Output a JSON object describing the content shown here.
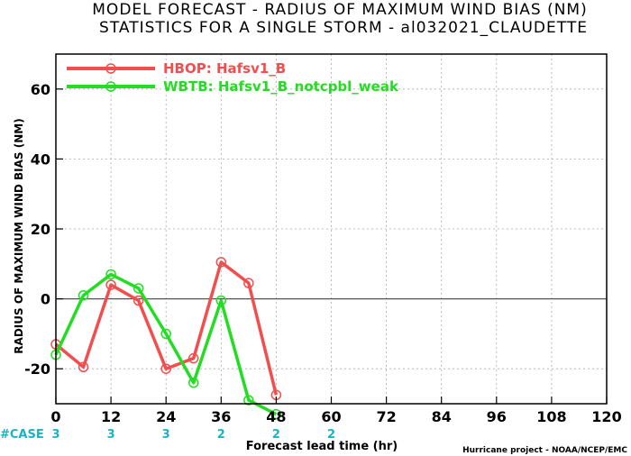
{
  "chart_data": {
    "type": "line",
    "title_line1": "MODEL FORECAST - RADIUS OF MAXIMUM WIND BIAS (NM)",
    "title_line2": "STATISTICS FOR A SINGLE STORM - al032021_CLAUDETTE",
    "xlabel": "Forecast lead time (hr)",
    "ylabel": "RADIUS OF MAXIMUM WIND BIAS (NM)",
    "xlim": [
      0,
      120
    ],
    "ylim": [
      -30,
      70
    ],
    "xticks": [
      0,
      12,
      24,
      36,
      48,
      60,
      72,
      84,
      96,
      108,
      120
    ],
    "yticks": [
      -20,
      0,
      20,
      40,
      60
    ],
    "grid": true,
    "legend_position": "top-left",
    "series": [
      {
        "name": "HBOP: Hafsv1_B",
        "color": "#f24e4e",
        "x": [
          0,
          6,
          12,
          18,
          24,
          30,
          36,
          42,
          48
        ],
        "y": [
          -13,
          -19.5,
          4,
          -0.5,
          -20,
          -17,
          10.5,
          4.5,
          -27.5
        ]
      },
      {
        "name": "WBTB: Hafsv1_B_notcpbl_weak",
        "color": "#22dd22",
        "x": [
          0,
          6,
          12,
          18,
          24,
          30,
          36,
          42,
          48
        ],
        "y": [
          -16,
          1,
          7,
          3,
          -10,
          -24,
          -0.5,
          -29,
          -33
        ]
      }
    ],
    "case_label": "#CASE",
    "case_counts": [
      {
        "x": 0,
        "label": "3"
      },
      {
        "x": 12,
        "label": "3"
      },
      {
        "x": 24,
        "label": "3"
      },
      {
        "x": 36,
        "label": "2"
      },
      {
        "x": 48,
        "label": "2"
      },
      {
        "x": 60,
        "label": "2"
      }
    ],
    "credit": "Hurricane project - NOAA/NCEP/EMC"
  }
}
